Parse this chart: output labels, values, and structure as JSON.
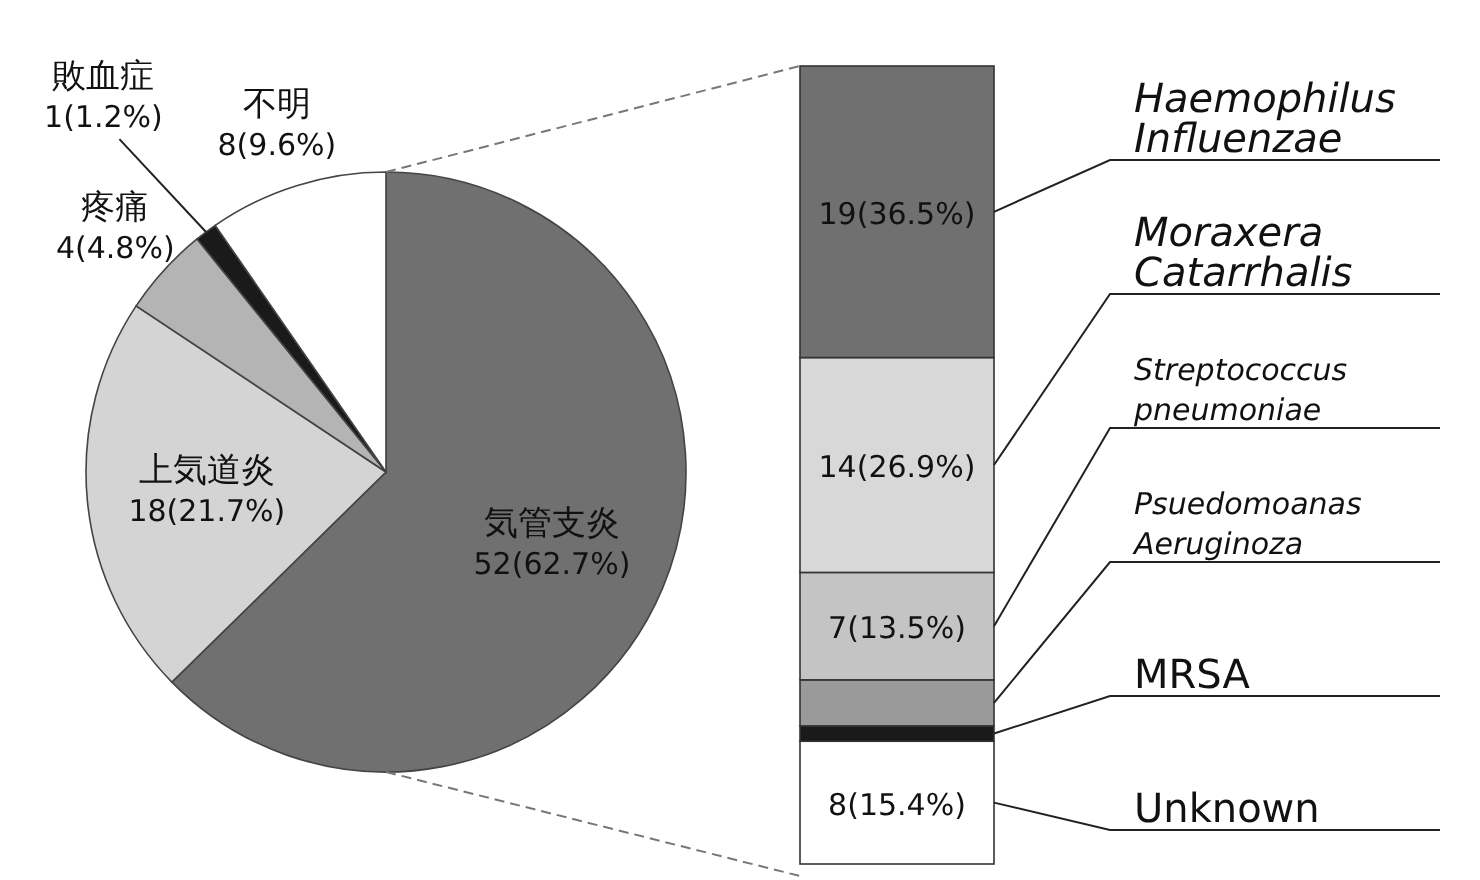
{
  "chart_data": [
    {
      "type": "pie",
      "categories": [
        "気管支炎",
        "上気道炎",
        "疼痛",
        "敗血症",
        "不明"
      ],
      "values": [
        52,
        18,
        4,
        1,
        8
      ],
      "colors": [
        "#707070",
        "#d4d4d4",
        "#b4b4b4",
        "#1a1a1a",
        "#ffffff"
      ],
      "value_labels": [
        "52(62.7%)",
        "18(21.7%)",
        "4(4.8%)",
        "1(1.2%)",
        "8(9.6%)"
      ]
    },
    {
      "type": "bar",
      "stacked": true,
      "categories": [
        null
      ],
      "tick_labels": false,
      "series": [
        {
          "name": "Unknown",
          "color": "#ffffff",
          "values": [
            8
          ],
          "value_labels": [
            "8(15.4%)"
          ]
        },
        {
          "name": "MRSA",
          "color": "#1a1a1a",
          "values": [
            1
          ],
          "value_labels": [
            null
          ]
        },
        {
          "name": "Psuedomoanas Aeruginoza",
          "color": "#9a9a9a",
          "values": [
            3
          ],
          "value_labels": [
            null
          ]
        },
        {
          "name": "Streptococcus pneumoniae",
          "color": "#c4c4c4",
          "values": [
            7
          ],
          "value_labels": [
            "7(13.5%)"
          ]
        },
        {
          "name": "Moraxera Catarrhalis",
          "color": "#d8d8d8",
          "values": [
            14
          ],
          "value_labels": [
            "14(26.9%)"
          ]
        },
        {
          "name": "Haemophilus Influenzae",
          "color": "#707070",
          "values": [
            19
          ],
          "value_labels": [
            "19(36.5%)"
          ]
        }
      ]
    }
  ]
}
